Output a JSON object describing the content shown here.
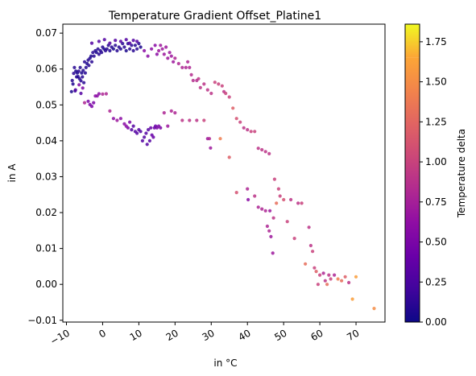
{
  "chart_data": {
    "type": "scatter",
    "title": "Temperature Gradient Offset_Platine1",
    "xlabel": "in °C",
    "ylabel": "in A",
    "xlim": [
      -11,
      78
    ],
    "ylim": [
      -0.0105,
      0.0725
    ],
    "x_ticks": [
      -10,
      0,
      10,
      20,
      30,
      40,
      50,
      60,
      70
    ],
    "y_ticks": [
      -0.01,
      0.0,
      0.01,
      0.02,
      0.03,
      0.04,
      0.05,
      0.06,
      0.07
    ],
    "grid": false,
    "colorbar": {
      "label": "Temperature delta",
      "range": [
        0,
        1.86
      ],
      "ticks": [
        0.0,
        0.25,
        0.5,
        0.75,
        1.0,
        1.25,
        1.5,
        1.75
      ],
      "colormap": "plasma"
    },
    "points": [
      [
        -8.6,
        0.0537,
        0.05
      ],
      [
        -8.4,
        0.0568,
        0.1
      ],
      [
        -8.2,
        0.0558,
        0.08
      ],
      [
        -8.0,
        0.0588,
        0.12
      ],
      [
        -7.8,
        0.0604,
        0.1
      ],
      [
        -7.6,
        0.0539,
        0.15
      ],
      [
        -7.4,
        0.0594,
        0.06
      ],
      [
        -7.2,
        0.0578,
        0.1
      ],
      [
        -7.0,
        0.0589,
        0.05
      ],
      [
        -6.8,
        0.0579,
        0.08
      ],
      [
        -6.6,
        0.0594,
        0.12
      ],
      [
        -6.4,
        0.0573,
        0.1
      ],
      [
        -6.2,
        0.0604,
        0.07
      ],
      [
        -6.0,
        0.0567,
        0.1
      ],
      [
        -5.8,
        0.0589,
        0.05
      ],
      [
        -5.6,
        0.0578,
        0.1
      ],
      [
        -5.4,
        0.0596,
        0.08
      ],
      [
        -5.2,
        0.0562,
        0.1
      ],
      [
        -5.0,
        0.062,
        0.1
      ],
      [
        -4.8,
        0.0589,
        0.1
      ],
      [
        -4.6,
        0.0604,
        0.08
      ],
      [
        -4.3,
        0.0615,
        0.05
      ],
      [
        -4.0,
        0.0625,
        0.1
      ],
      [
        -3.8,
        0.061,
        0.1
      ],
      [
        -3.5,
        0.063,
        0.08
      ],
      [
        -3.2,
        0.0636,
        0.05
      ],
      [
        -3.0,
        0.062,
        0.1
      ],
      [
        -2.7,
        0.0646,
        0.1
      ],
      [
        -2.4,
        0.0636,
        0.1
      ],
      [
        -2.0,
        0.0651,
        0.08
      ],
      [
        -1.7,
        0.0646,
        0.05
      ],
      [
        -1.3,
        0.0656,
        0.1
      ],
      [
        -1.0,
        0.0641,
        0.1
      ],
      [
        -0.6,
        0.0651,
        0.08
      ],
      [
        -0.3,
        0.0646,
        0.1
      ],
      [
        0.0,
        0.0661,
        0.1
      ],
      [
        0.4,
        0.0656,
        0.05
      ],
      [
        0.8,
        0.0651,
        0.1
      ],
      [
        1.2,
        0.0656,
        0.1
      ],
      [
        1.6,
        0.0666,
        0.1
      ],
      [
        2.0,
        0.0651,
        0.08
      ],
      [
        2.5,
        0.0661,
        0.1
      ],
      [
        3.0,
        0.0656,
        0.05
      ],
      [
        3.5,
        0.0666,
        0.1
      ],
      [
        4.0,
        0.0651,
        0.1
      ],
      [
        4.5,
        0.0661,
        0.1
      ],
      [
        5.0,
        0.0656,
        0.08
      ],
      [
        5.5,
        0.0671,
        0.1
      ],
      [
        6.0,
        0.0661,
        0.1
      ],
      [
        6.5,
        0.0651,
        0.05
      ],
      [
        7.0,
        0.0671,
        0.1
      ],
      [
        7.5,
        0.0656,
        0.1
      ],
      [
        8.0,
        0.0666,
        0.1
      ],
      [
        8.5,
        0.0651,
        0.1
      ],
      [
        9.0,
        0.0666,
        0.08
      ],
      [
        9.5,
        0.0656,
        0.1
      ],
      [
        10.0,
        0.0671,
        0.1
      ],
      [
        10.5,
        0.0661,
        0.05
      ],
      [
        -3.0,
        0.0672,
        0.3
      ],
      [
        -1.0,
        0.0677,
        0.3
      ],
      [
        0.5,
        0.0682,
        0.3
      ],
      [
        2.0,
        0.0672,
        0.3
      ],
      [
        3.5,
        0.068,
        0.3
      ],
      [
        5.0,
        0.0677,
        0.3
      ],
      [
        6.5,
        0.0682,
        0.3
      ],
      [
        7.5,
        0.0672,
        0.3
      ],
      [
        8.5,
        0.068,
        0.3
      ],
      [
        9.5,
        0.0677,
        0.3
      ],
      [
        -6.5,
        0.0556,
        0.5
      ],
      [
        -5.5,
        0.0547,
        0.5
      ],
      [
        11.5,
        0.0651,
        0.6
      ],
      [
        12.5,
        0.0636,
        0.6
      ],
      [
        13.5,
        0.0656,
        0.6
      ],
      [
        14.5,
        0.0666,
        0.6
      ],
      [
        15.0,
        0.0641,
        0.6
      ],
      [
        15.5,
        0.0651,
        0.7
      ],
      [
        16.0,
        0.0666,
        0.7
      ],
      [
        16.5,
        0.0656,
        0.7
      ],
      [
        17.0,
        0.0641,
        0.7
      ],
      [
        17.5,
        0.0661,
        0.7
      ],
      [
        18.0,
        0.063,
        0.7
      ],
      [
        18.5,
        0.0646,
        0.7
      ],
      [
        19.0,
        0.0636,
        0.7
      ],
      [
        19.5,
        0.062,
        0.7
      ],
      [
        20.0,
        0.063,
        0.8
      ],
      [
        21.0,
        0.0615,
        0.8
      ],
      [
        22.0,
        0.0604,
        0.8
      ],
      [
        23.0,
        0.0604,
        0.8
      ],
      [
        23.5,
        0.062,
        0.8
      ],
      [
        24.0,
        0.0604,
        0.8
      ],
      [
        24.5,
        0.0584,
        0.85
      ],
      [
        25.0,
        0.0568,
        0.85
      ],
      [
        26.0,
        0.0568,
        0.85
      ],
      [
        26.5,
        0.0573,
        0.9
      ],
      [
        27.0,
        0.0548,
        0.9
      ],
      [
        28.0,
        0.0558,
        0.9
      ],
      [
        29.0,
        0.0542,
        0.9
      ],
      [
        30.0,
        0.0532,
        0.9
      ],
      [
        31.0,
        0.0563,
        1.0
      ],
      [
        32.0,
        0.0558,
        1.0
      ],
      [
        33.0,
        0.0553,
        1.0
      ],
      [
        33.5,
        0.0537,
        0.9
      ],
      [
        34.0,
        0.0532,
        1.0
      ],
      [
        35.0,
        0.0522,
        1.0
      ],
      [
        -7.5,
        0.0542,
        0.3
      ],
      [
        -6.0,
        0.0532,
        0.3
      ],
      [
        -5.0,
        0.0506,
        0.8
      ],
      [
        -4.0,
        0.051,
        0.5
      ],
      [
        -3.5,
        0.0501,
        0.5
      ],
      [
        -3.0,
        0.0496,
        0.5
      ],
      [
        -2.5,
        0.0506,
        0.5
      ],
      [
        -2.0,
        0.0525,
        0.6
      ],
      [
        -1.5,
        0.0525,
        0.6
      ],
      [
        -1.0,
        0.0531,
        0.6
      ],
      [
        0.0,
        0.053,
        0.8
      ],
      [
        1.0,
        0.0531,
        0.8
      ],
      [
        2.0,
        0.0483,
        0.8
      ],
      [
        3.0,
        0.0462,
        0.6
      ],
      [
        4.0,
        0.0457,
        0.7
      ],
      [
        5.0,
        0.0462,
        0.6
      ],
      [
        6.0,
        0.0447,
        0.6
      ],
      [
        6.5,
        0.0441,
        0.6
      ],
      [
        7.0,
        0.0436,
        0.5
      ],
      [
        7.5,
        0.0452,
        0.5
      ],
      [
        8.0,
        0.0431,
        0.3
      ],
      [
        8.5,
        0.0441,
        0.3
      ],
      [
        9.0,
        0.0426,
        0.3
      ],
      [
        9.5,
        0.0421,
        0.3
      ],
      [
        10.0,
        0.0431,
        0.3
      ],
      [
        10.5,
        0.0426,
        0.3
      ],
      [
        11.0,
        0.04,
        0.3
      ],
      [
        11.5,
        0.041,
        0.3
      ],
      [
        12.0,
        0.0421,
        0.3
      ],
      [
        12.3,
        0.039,
        0.3
      ],
      [
        12.6,
        0.0431,
        0.3
      ],
      [
        13.0,
        0.04,
        0.3
      ],
      [
        13.3,
        0.0436,
        0.4
      ],
      [
        13.6,
        0.0416,
        0.4
      ],
      [
        14.0,
        0.041,
        0.4
      ],
      [
        14.3,
        0.0436,
        0.4
      ],
      [
        14.6,
        0.0441,
        0.4
      ],
      [
        15.0,
        0.0436,
        0.5
      ],
      [
        15.5,
        0.0441,
        0.5
      ],
      [
        16.0,
        0.0436,
        0.5
      ],
      [
        17.0,
        0.0478,
        0.8
      ],
      [
        18.0,
        0.0441,
        0.7
      ],
      [
        19.0,
        0.0483,
        0.8
      ],
      [
        20.0,
        0.0478,
        0.8
      ],
      [
        22.0,
        0.0457,
        0.9
      ],
      [
        24.0,
        0.0457,
        0.9
      ],
      [
        26.0,
        0.0457,
        0.9
      ],
      [
        28.0,
        0.0457,
        1.0
      ],
      [
        29.0,
        0.0406,
        0.7
      ],
      [
        29.5,
        0.0406,
        0.8
      ],
      [
        29.8,
        0.038,
        0.7
      ],
      [
        32.5,
        0.0406,
        1.4
      ],
      [
        35.0,
        0.0354,
        1.2
      ],
      [
        36.0,
        0.0491,
        1.2
      ],
      [
        37.0,
        0.0462,
        1.1
      ],
      [
        38.0,
        0.0452,
        1.0
      ],
      [
        39.0,
        0.0436,
        0.9
      ],
      [
        40.0,
        0.0431,
        0.9
      ],
      [
        41.0,
        0.0426,
        1.0
      ],
      [
        42.0,
        0.0426,
        1.0
      ],
      [
        43.0,
        0.0379,
        0.9
      ],
      [
        44.0,
        0.0375,
        0.9
      ],
      [
        45.0,
        0.037,
        0.9
      ],
      [
        46.0,
        0.0364,
        0.9
      ],
      [
        37.0,
        0.0256,
        1.1
      ],
      [
        40.0,
        0.0266,
        0.8
      ],
      [
        40.2,
        0.0236,
        0.6
      ],
      [
        42.0,
        0.0246,
        0.9
      ],
      [
        43.0,
        0.0215,
        0.8
      ],
      [
        44.0,
        0.021,
        0.8
      ],
      [
        45.0,
        0.0205,
        0.8
      ],
      [
        45.5,
        0.0162,
        0.8
      ],
      [
        46.0,
        0.0149,
        0.8
      ],
      [
        46.5,
        0.0133,
        0.7
      ],
      [
        47.0,
        0.0087,
        0.7
      ],
      [
        47.5,
        0.0293,
        1.0
      ],
      [
        48.0,
        0.0226,
        1.3
      ],
      [
        49.0,
        0.0246,
        1.0
      ],
      [
        50.0,
        0.0236,
        1.1
      ],
      [
        51.0,
        0.0175,
        1.0
      ],
      [
        52.0,
        0.0236,
        0.9
      ],
      [
        53.0,
        0.0128,
        1.0
      ],
      [
        54.0,
        0.0226,
        0.9
      ],
      [
        55.0,
        0.0226,
        1.0
      ],
      [
        56.0,
        0.0057,
        1.3
      ],
      [
        57.0,
        0.0159,
        0.9
      ],
      [
        57.5,
        0.0108,
        0.9
      ],
      [
        58.0,
        0.0092,
        1.0
      ],
      [
        58.5,
        0.0046,
        1.0
      ],
      [
        59.0,
        0.0036,
        1.2
      ],
      [
        60.0,
        0.0026,
        1.0
      ],
      [
        61.0,
        0.0031,
        0.8
      ],
      [
        62.0,
        0.0,
        1.3
      ],
      [
        62.5,
        0.0026,
        0.9
      ],
      [
        63.0,
        0.0015,
        1.0
      ],
      [
        64.0,
        0.0026,
        0.8
      ],
      [
        65.0,
        0.0015,
        1.4
      ],
      [
        66.0,
        0.001,
        1.3
      ],
      [
        67.0,
        0.0021,
        1.2
      ],
      [
        68.0,
        0.0005,
        0.9
      ],
      [
        69.0,
        -0.0041,
        1.6
      ],
      [
        70.0,
        0.0021,
        1.6
      ],
      [
        75.0,
        -0.0067,
        1.5
      ],
      [
        59.5,
        0.0,
        1.0
      ],
      [
        61.5,
        0.001,
        0.9
      ],
      [
        47.2,
        0.0185,
        0.9
      ],
      [
        46.2,
        0.0205,
        0.7
      ],
      [
        48.6,
        0.0266,
        1.0
      ]
    ]
  }
}
